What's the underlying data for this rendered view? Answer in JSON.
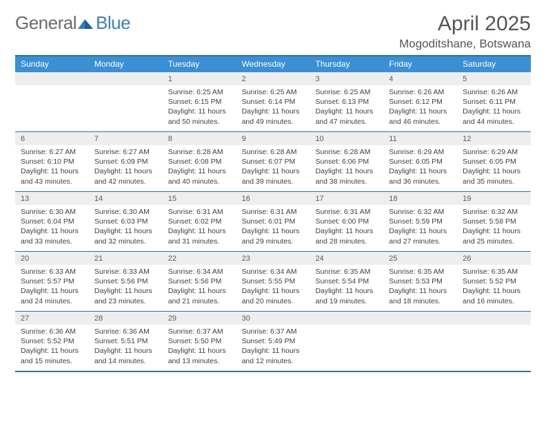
{
  "brand": {
    "name_a": "General",
    "name_b": "Blue"
  },
  "title": "April 2025",
  "location": "Mogoditshane, Botswana",
  "colors": {
    "header_bar": "#3b8fd4",
    "rule": "#2b6fa8",
    "daynum_bg": "#eeeeee",
    "text": "#404040",
    "title_text": "#555555"
  },
  "dow": [
    "Sunday",
    "Monday",
    "Tuesday",
    "Wednesday",
    "Thursday",
    "Friday",
    "Saturday"
  ],
  "weeks": [
    [
      {
        "n": "",
        "sr": "",
        "ss": "",
        "dl": ""
      },
      {
        "n": "",
        "sr": "",
        "ss": "",
        "dl": ""
      },
      {
        "n": "1",
        "sr": "Sunrise: 6:25 AM",
        "ss": "Sunset: 6:15 PM",
        "dl": "Daylight: 11 hours and 50 minutes."
      },
      {
        "n": "2",
        "sr": "Sunrise: 6:25 AM",
        "ss": "Sunset: 6:14 PM",
        "dl": "Daylight: 11 hours and 49 minutes."
      },
      {
        "n": "3",
        "sr": "Sunrise: 6:25 AM",
        "ss": "Sunset: 6:13 PM",
        "dl": "Daylight: 11 hours and 47 minutes."
      },
      {
        "n": "4",
        "sr": "Sunrise: 6:26 AM",
        "ss": "Sunset: 6:12 PM",
        "dl": "Daylight: 11 hours and 46 minutes."
      },
      {
        "n": "5",
        "sr": "Sunrise: 6:26 AM",
        "ss": "Sunset: 6:11 PM",
        "dl": "Daylight: 11 hours and 44 minutes."
      }
    ],
    [
      {
        "n": "6",
        "sr": "Sunrise: 6:27 AM",
        "ss": "Sunset: 6:10 PM",
        "dl": "Daylight: 11 hours and 43 minutes."
      },
      {
        "n": "7",
        "sr": "Sunrise: 6:27 AM",
        "ss": "Sunset: 6:09 PM",
        "dl": "Daylight: 11 hours and 42 minutes."
      },
      {
        "n": "8",
        "sr": "Sunrise: 6:28 AM",
        "ss": "Sunset: 6:08 PM",
        "dl": "Daylight: 11 hours and 40 minutes."
      },
      {
        "n": "9",
        "sr": "Sunrise: 6:28 AM",
        "ss": "Sunset: 6:07 PM",
        "dl": "Daylight: 11 hours and 39 minutes."
      },
      {
        "n": "10",
        "sr": "Sunrise: 6:28 AM",
        "ss": "Sunset: 6:06 PM",
        "dl": "Daylight: 11 hours and 38 minutes."
      },
      {
        "n": "11",
        "sr": "Sunrise: 6:29 AM",
        "ss": "Sunset: 6:05 PM",
        "dl": "Daylight: 11 hours and 36 minutes."
      },
      {
        "n": "12",
        "sr": "Sunrise: 6:29 AM",
        "ss": "Sunset: 6:05 PM",
        "dl": "Daylight: 11 hours and 35 minutes."
      }
    ],
    [
      {
        "n": "13",
        "sr": "Sunrise: 6:30 AM",
        "ss": "Sunset: 6:04 PM",
        "dl": "Daylight: 11 hours and 33 minutes."
      },
      {
        "n": "14",
        "sr": "Sunrise: 6:30 AM",
        "ss": "Sunset: 6:03 PM",
        "dl": "Daylight: 11 hours and 32 minutes."
      },
      {
        "n": "15",
        "sr": "Sunrise: 6:31 AM",
        "ss": "Sunset: 6:02 PM",
        "dl": "Daylight: 11 hours and 31 minutes."
      },
      {
        "n": "16",
        "sr": "Sunrise: 6:31 AM",
        "ss": "Sunset: 6:01 PM",
        "dl": "Daylight: 11 hours and 29 minutes."
      },
      {
        "n": "17",
        "sr": "Sunrise: 6:31 AM",
        "ss": "Sunset: 6:00 PM",
        "dl": "Daylight: 11 hours and 28 minutes."
      },
      {
        "n": "18",
        "sr": "Sunrise: 6:32 AM",
        "ss": "Sunset: 5:59 PM",
        "dl": "Daylight: 11 hours and 27 minutes."
      },
      {
        "n": "19",
        "sr": "Sunrise: 6:32 AM",
        "ss": "Sunset: 5:58 PM",
        "dl": "Daylight: 11 hours and 25 minutes."
      }
    ],
    [
      {
        "n": "20",
        "sr": "Sunrise: 6:33 AM",
        "ss": "Sunset: 5:57 PM",
        "dl": "Daylight: 11 hours and 24 minutes."
      },
      {
        "n": "21",
        "sr": "Sunrise: 6:33 AM",
        "ss": "Sunset: 5:56 PM",
        "dl": "Daylight: 11 hours and 23 minutes."
      },
      {
        "n": "22",
        "sr": "Sunrise: 6:34 AM",
        "ss": "Sunset: 5:56 PM",
        "dl": "Daylight: 11 hours and 21 minutes."
      },
      {
        "n": "23",
        "sr": "Sunrise: 6:34 AM",
        "ss": "Sunset: 5:55 PM",
        "dl": "Daylight: 11 hours and 20 minutes."
      },
      {
        "n": "24",
        "sr": "Sunrise: 6:35 AM",
        "ss": "Sunset: 5:54 PM",
        "dl": "Daylight: 11 hours and 19 minutes."
      },
      {
        "n": "25",
        "sr": "Sunrise: 6:35 AM",
        "ss": "Sunset: 5:53 PM",
        "dl": "Daylight: 11 hours and 18 minutes."
      },
      {
        "n": "26",
        "sr": "Sunrise: 6:35 AM",
        "ss": "Sunset: 5:52 PM",
        "dl": "Daylight: 11 hours and 16 minutes."
      }
    ],
    [
      {
        "n": "27",
        "sr": "Sunrise: 6:36 AM",
        "ss": "Sunset: 5:52 PM",
        "dl": "Daylight: 11 hours and 15 minutes."
      },
      {
        "n": "28",
        "sr": "Sunrise: 6:36 AM",
        "ss": "Sunset: 5:51 PM",
        "dl": "Daylight: 11 hours and 14 minutes."
      },
      {
        "n": "29",
        "sr": "Sunrise: 6:37 AM",
        "ss": "Sunset: 5:50 PM",
        "dl": "Daylight: 11 hours and 13 minutes."
      },
      {
        "n": "30",
        "sr": "Sunrise: 6:37 AM",
        "ss": "Sunset: 5:49 PM",
        "dl": "Daylight: 11 hours and 12 minutes."
      },
      {
        "n": "",
        "sr": "",
        "ss": "",
        "dl": ""
      },
      {
        "n": "",
        "sr": "",
        "ss": "",
        "dl": ""
      },
      {
        "n": "",
        "sr": "",
        "ss": "",
        "dl": ""
      }
    ]
  ]
}
